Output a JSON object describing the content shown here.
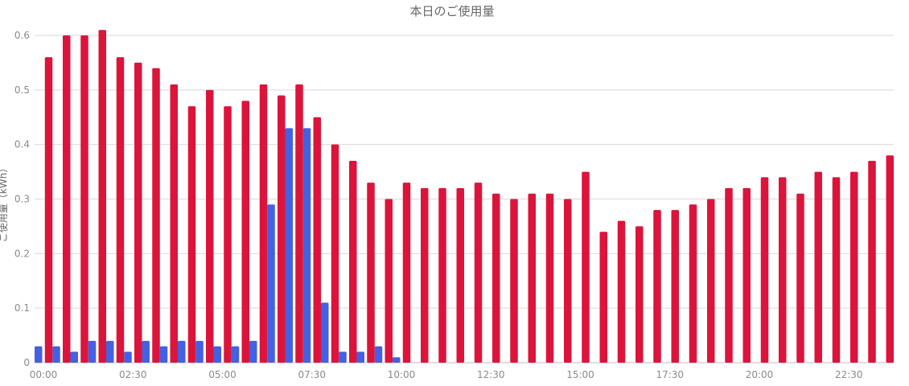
{
  "chart_data": {
    "type": "bar",
    "title": "本日のご使用量",
    "ylabel": "ご使用量（kWh）",
    "xlabel": "",
    "ylim": [
      0,
      0.6
    ],
    "y_ticks": [
      "0",
      "0.1",
      "0.2",
      "0.3",
      "0.4",
      "0.5",
      "0.6"
    ],
    "x_tick_labels": [
      "00:00",
      "02:30",
      "05:00",
      "07:30",
      "10:00",
      "12:30",
      "15:00",
      "17:30",
      "20:00",
      "22:30"
    ],
    "grid": true,
    "categories": [
      "00:00",
      "00:30",
      "01:00",
      "01:30",
      "02:00",
      "02:30",
      "03:00",
      "03:30",
      "04:00",
      "04:30",
      "05:00",
      "05:30",
      "06:00",
      "06:30",
      "07:00",
      "07:30",
      "08:00",
      "08:30",
      "09:00",
      "09:30",
      "10:00",
      "10:30",
      "11:00",
      "11:30",
      "12:00",
      "12:30",
      "13:00",
      "13:30",
      "14:00",
      "14:30",
      "15:00",
      "15:30",
      "16:00",
      "16:30",
      "17:00",
      "17:30",
      "18:00",
      "18:30",
      "19:00",
      "19:30",
      "20:00",
      "20:30",
      "21:00",
      "21:30",
      "22:00",
      "22:30",
      "23:00",
      "23:30"
    ],
    "series": [
      {
        "color": "#4361e0",
        "values": [
          0.03,
          0.03,
          0.02,
          0.04,
          0.04,
          0.02,
          0.04,
          0.03,
          0.04,
          0.04,
          0.03,
          0.03,
          0.04,
          0.29,
          0.43,
          0.43,
          0.11,
          0.02,
          0.02,
          0.03,
          0.01,
          0,
          0,
          0,
          0,
          0,
          0,
          0,
          0,
          0,
          0,
          0,
          0,
          0,
          0,
          0,
          0,
          0,
          0,
          0,
          0,
          0,
          0,
          0,
          0,
          0,
          0,
          0
        ]
      },
      {
        "color": "#dc143c",
        "values": [
          0.56,
          0.6,
          0.6,
          0.61,
          0.56,
          0.55,
          0.54,
          0.51,
          0.47,
          0.5,
          0.47,
          0.48,
          0.51,
          0.49,
          0.51,
          0.45,
          0.4,
          0.37,
          0.33,
          0.3,
          0.33,
          0.32,
          0.32,
          0.32,
          0.33,
          0.31,
          0.3,
          0.31,
          0.31,
          0.3,
          0.35,
          0.24,
          0.26,
          0.25,
          0.28,
          0.28,
          0.29,
          0.3,
          0.32,
          0.32,
          0.34,
          0.34,
          0.31,
          0.35,
          0.34,
          0.35,
          0.37,
          0.38
        ]
      }
    ]
  }
}
